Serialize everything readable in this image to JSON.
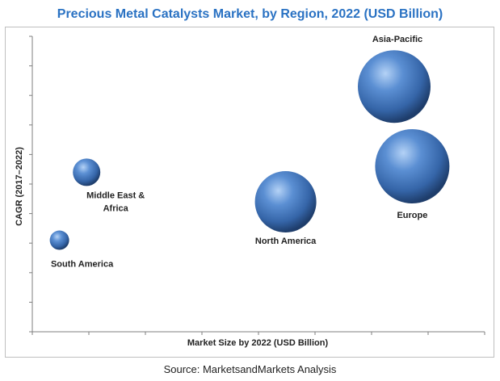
{
  "source": "Source: MarketsandMarkets Analysis",
  "colors": {
    "title": "#2a72c3",
    "bubble_light": "#a9c8f0",
    "bubble_mid": "#4a7fc4",
    "bubble_dark": "#1e3d6b",
    "axis": "#7f7f7f"
  },
  "chart_data": {
    "type": "scatter",
    "title": "Precious Metal Catalysts Market, by Region, 2022 (USD Billion)",
    "xlabel": "Market Size by 2022 (USD Billion)",
    "ylabel": "CAGR (2017–2022)",
    "xlim": [
      0,
      10
    ],
    "ylim": [
      0,
      10
    ],
    "ticks_labeled": false,
    "grid": false,
    "points": [
      {
        "label": "Asia-Pacific",
        "x": 8.0,
        "y": 8.3,
        "size": 45
      },
      {
        "label": "Europe",
        "x": 8.4,
        "y": 5.6,
        "size": 46
      },
      {
        "label": "North America",
        "x": 5.6,
        "y": 4.4,
        "size": 38
      },
      {
        "label": "Middle East &",
        "label2": "Africa",
        "x": 1.2,
        "y": 5.4,
        "size": 17
      },
      {
        "label": "South America",
        "x": 0.6,
        "y": 3.1,
        "size": 12
      }
    ]
  }
}
